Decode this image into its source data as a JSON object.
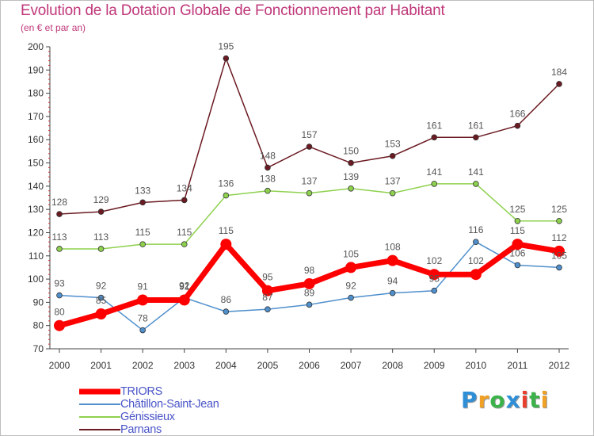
{
  "chart_data": {
    "type": "line",
    "title": "Evolution de la Dotation Globale de Fonctionnement par Habitant",
    "subtitle": "(en € et par an)",
    "xlabel": "",
    "ylabel": "",
    "categories": [
      "2000",
      "2001",
      "2002",
      "2003",
      "2004",
      "2005",
      "2006",
      "2007",
      "2008",
      "2009",
      "2010",
      "2011",
      "2012"
    ],
    "ylim": [
      70,
      200
    ],
    "yticks": [
      70,
      80,
      90,
      100,
      110,
      120,
      130,
      140,
      150,
      160,
      170,
      180,
      190,
      200
    ],
    "grid": false,
    "legend_position": "bottom-left",
    "series": [
      {
        "name": "Parnans",
        "color": "#6b1a22",
        "bold": false,
        "values": [
          128,
          129,
          133,
          134,
          195,
          148,
          157,
          150,
          153,
          161,
          161,
          166,
          184
        ]
      },
      {
        "name": "Génissieux",
        "color": "#8ed14e",
        "bold": false,
        "values": [
          113,
          113,
          115,
          115,
          136,
          138,
          137,
          139,
          137,
          141,
          141,
          125,
          125
        ]
      },
      {
        "name": "Châtillon-Saint-Jean",
        "color": "#4f8fcc",
        "bold": false,
        "values": [
          93,
          92,
          78,
          92,
          86,
          87,
          89,
          92,
          94,
          95,
          116,
          106,
          105
        ]
      },
      {
        "name": "TRIORS",
        "color": "#ff0000",
        "bold": true,
        "values": [
          80,
          85,
          91,
          91,
          115,
          95,
          98,
          105,
          108,
          102,
          102,
          115,
          112
        ]
      }
    ]
  },
  "legend": {
    "items": [
      {
        "label": "TRIORS",
        "color": "#ff0000"
      },
      {
        "label": "Châtillon-Saint-Jean",
        "color": "#4f8fcc"
      },
      {
        "label": "Génissieux",
        "color": "#8ed14e"
      },
      {
        "label": "Parnans",
        "color": "#6b1a22"
      }
    ]
  },
  "logo": {
    "text": "Proxiti"
  }
}
